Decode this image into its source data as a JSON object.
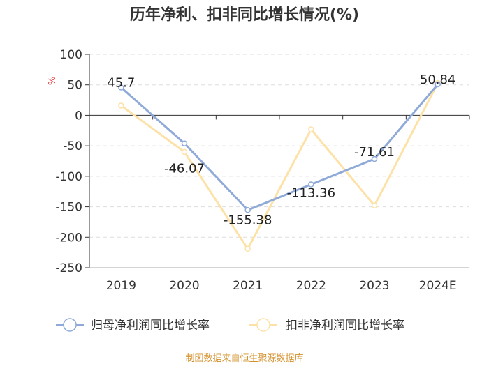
{
  "chart_data": {
    "type": "line",
    "title": "历年净利、扣非同比增长情况(%)",
    "ylabel": "%",
    "categories": [
      "2019",
      "2020",
      "2021",
      "2022",
      "2023",
      "2024E"
    ],
    "ylim": [
      -250,
      100
    ],
    "yticks": [
      100,
      50,
      0,
      -50,
      -100,
      -150,
      -200,
      -250
    ],
    "series": [
      {
        "name": "归母净利润同比增长率",
        "color": "#8faad8",
        "values": [
          45.7,
          -46.07,
          -155.38,
          -113.36,
          -71.61,
          50.84
        ],
        "labels": [
          "45.7",
          "-46.07",
          "-155.38",
          "-113.36",
          "-71.61",
          "50.84"
        ]
      },
      {
        "name": "扣非净利润同比增长率",
        "color": "#fde2a8",
        "values": [
          16,
          -60,
          -219,
          -23,
          -148,
          53
        ]
      }
    ],
    "source": "制图数据来自恒生聚源数据库"
  }
}
